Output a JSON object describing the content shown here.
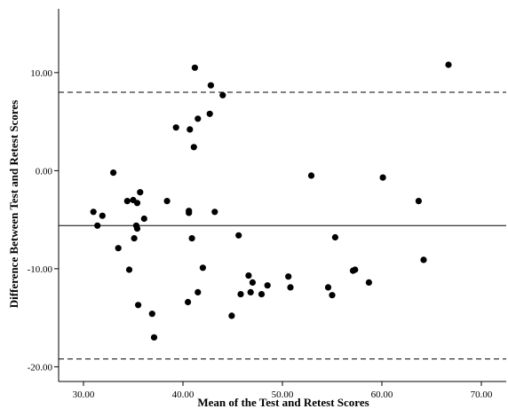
{
  "chart_data": {
    "type": "scatter",
    "title": "",
    "xlabel": "Mean of the Test and Retest Scores",
    "ylabel": "Difference Between Test and Retest Scores",
    "xlim": [
      27.5,
      72.5
    ],
    "ylim": [
      -21.5,
      16.5
    ],
    "x_ticks": [
      30,
      40,
      50,
      60,
      70
    ],
    "x_tick_labels": [
      "30.00",
      "40.00",
      "50.00",
      "60.00",
      "70.00"
    ],
    "y_ticks": [
      -20,
      -10,
      0,
      10
    ],
    "y_tick_labels": [
      "-20.00",
      "-10.00",
      "0.00",
      "10.00"
    ],
    "grid": false,
    "reference_lines": [
      {
        "y": 8.0,
        "style": "dashed"
      },
      {
        "y": -5.6,
        "style": "solid"
      },
      {
        "y": -19.2,
        "style": "dashed"
      }
    ],
    "series": [
      {
        "points": [
          [
            31.0,
            -4.2
          ],
          [
            31.4,
            -5.6
          ],
          [
            31.9,
            -4.6
          ],
          [
            33.0,
            -0.2
          ],
          [
            33.5,
            -7.9
          ],
          [
            34.4,
            -3.1
          ],
          [
            34.6,
            -10.1
          ],
          [
            35.0,
            -3.0
          ],
          [
            35.1,
            -6.9
          ],
          [
            35.3,
            -5.6
          ],
          [
            35.4,
            -3.3
          ],
          [
            35.4,
            -5.9
          ],
          [
            35.5,
            -13.7
          ],
          [
            35.7,
            -2.2
          ],
          [
            36.1,
            -4.9
          ],
          [
            36.9,
            -14.6
          ],
          [
            37.1,
            -17.0
          ],
          [
            38.4,
            -3.1
          ],
          [
            39.3,
            4.4
          ],
          [
            40.5,
            -13.4
          ],
          [
            40.6,
            -4.1
          ],
          [
            40.6,
            -4.3
          ],
          [
            40.7,
            4.2
          ],
          [
            40.9,
            -6.9
          ],
          [
            41.1,
            2.4
          ],
          [
            41.2,
            10.5
          ],
          [
            41.5,
            -12.4
          ],
          [
            41.5,
            5.3
          ],
          [
            42.0,
            -9.9
          ],
          [
            42.7,
            5.8
          ],
          [
            42.8,
            8.7
          ],
          [
            43.2,
            -4.2
          ],
          [
            44.0,
            7.7
          ],
          [
            44.9,
            -14.8
          ],
          [
            45.6,
            -6.6
          ],
          [
            45.8,
            -12.6
          ],
          [
            46.6,
            -10.7
          ],
          [
            46.8,
            -12.4
          ],
          [
            47.0,
            -11.4
          ],
          [
            47.9,
            -12.6
          ],
          [
            48.5,
            -11.7
          ],
          [
            50.6,
            -10.8
          ],
          [
            50.8,
            -11.9
          ],
          [
            52.9,
            -0.5
          ],
          [
            54.6,
            -11.9
          ],
          [
            55.0,
            -12.7
          ],
          [
            55.3,
            -6.8
          ],
          [
            57.1,
            -10.2
          ],
          [
            57.3,
            -10.1
          ],
          [
            58.7,
            -11.4
          ],
          [
            60.1,
            -0.7
          ],
          [
            63.7,
            -3.1
          ],
          [
            64.2,
            -9.1
          ],
          [
            66.7,
            10.8
          ]
        ]
      }
    ]
  }
}
